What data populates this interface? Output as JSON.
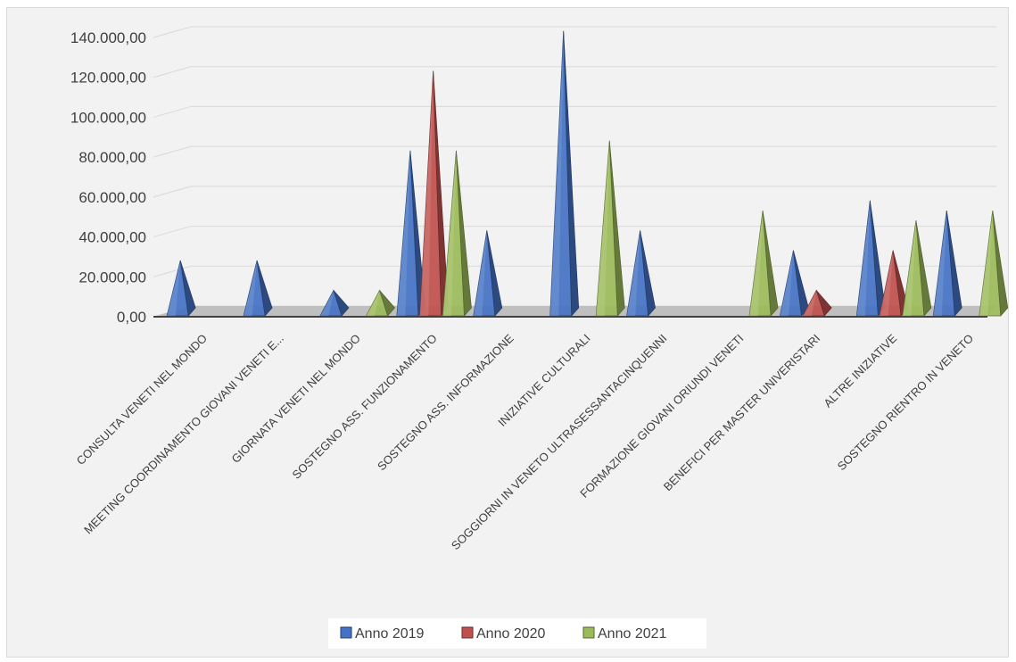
{
  "chart_data": {
    "type": "bar",
    "bar_shape": "pyramid-3d",
    "title": "",
    "xlabel": "",
    "ylabel": "",
    "ylim": [
      0,
      140000
    ],
    "ytick_values": [
      0,
      20000,
      40000,
      60000,
      80000,
      100000,
      120000,
      140000
    ],
    "ytick_labels": [
      "0,00",
      "20.000,00",
      "40.000,00",
      "60.000,00",
      "80.000,00",
      "100.000,00",
      "120.000,00",
      "140.000,00"
    ],
    "grid": true,
    "legend_position": "bottom",
    "categories": [
      "CONSULTA VENETI NEL MONDO",
      "MEETING COORDINAMENTO GIOVANI VENETI E...",
      "GIORNATA VENETI NEL MONDO",
      "SOSTEGNO ASS. FUNZIONAMENTO",
      "SOSTEGNO ASS.  INFORMAZIONE",
      "INIZIATIVE CULTURALI",
      "SOGGIORNI IN VENETO ULTRASESSANTACINQUENNI",
      "FORMAZIONE GIOVANI ORIUNDI VENETI",
      "BENEFICI PER MASTER UNIVERISTARI",
      "ALTRE INIZIATIVE",
      "SOSTEGNO RIENTRO IN VENETO"
    ],
    "series": [
      {
        "name": "Anno 2019",
        "color": "#4472c4",
        "values": [
          25000,
          25000,
          10000,
          80000,
          40000,
          140000,
          40000,
          0,
          30000,
          55000,
          50000
        ]
      },
      {
        "name": "Anno 2020",
        "color": "#c0504d",
        "values": [
          0,
          0,
          0,
          120000,
          0,
          0,
          0,
          0,
          10000,
          30000,
          0
        ]
      },
      {
        "name": "Anno 2021",
        "color": "#9bbb59",
        "values": [
          0,
          0,
          10000,
          80000,
          0,
          85000,
          0,
          50000,
          0,
          45000,
          50000
        ]
      }
    ]
  }
}
